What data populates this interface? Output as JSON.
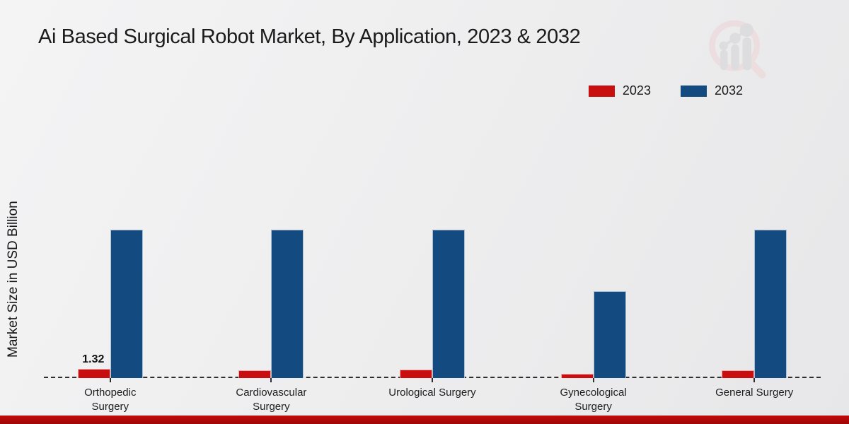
{
  "chart_data": {
    "type": "bar",
    "title": "Ai Based Surgical Robot Market, By Application, 2023 & 2032",
    "xlabel": "",
    "ylabel": "Market Size in USD Billion",
    "categories": [
      "Orthopedic Surgery",
      "Cardiovascular Surgery",
      "Urological Surgery",
      "Gynecological Surgery",
      "General Surgery"
    ],
    "series": [
      {
        "name": "2023",
        "color": "#c90e10",
        "values": [
          1.32,
          1.1,
          1.2,
          0.65,
          1.15
        ],
        "labels": [
          "1.32",
          "",
          "",
          "",
          ""
        ]
      },
      {
        "name": "2032",
        "color": "#134a80",
        "values": [
          21.3,
          21.3,
          21.3,
          12.5,
          21.3
        ],
        "labels": [
          "",
          "",
          "",
          "",
          ""
        ]
      }
    ],
    "ylim": [
      0,
      40
    ],
    "grid": false,
    "legend_position": "top-right",
    "baseline_style": "dashed"
  },
  "colors": {
    "footer_strip": "#b50a0a",
    "logo_pink": "#eed5d6",
    "logo_gray": "#d3d3d7"
  }
}
